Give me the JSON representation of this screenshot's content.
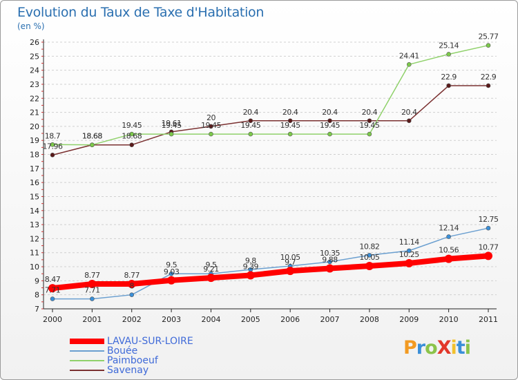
{
  "header": {
    "title": "Evolution du Taux de Taxe d'Habitation",
    "unit": "(en %)"
  },
  "logo": {
    "text": "ProXiti",
    "letter_colors": [
      "#f29a22",
      "#3a8fd8",
      "#8bc34a",
      "#e2372a",
      "#f2c12e",
      "#3a8fd8",
      "#8bc34a"
    ]
  },
  "colors": {
    "grid": "#d0d0d0",
    "axis": "#222222",
    "tick_text": "#222222",
    "label_text": "#333333"
  },
  "chart_data": {
    "type": "line",
    "title": "Evolution du Taux de Taxe d'Habitation",
    "ylabel": "(en %)",
    "xlabel": "",
    "x": [
      "2000",
      "2001",
      "2002",
      "2003",
      "2004",
      "2005",
      "2006",
      "2007",
      "2008",
      "2009",
      "2010",
      "2011"
    ],
    "ylim": [
      7,
      26
    ],
    "yticks": [
      7,
      8,
      9,
      10,
      11,
      12,
      13,
      14,
      15,
      16,
      17,
      18,
      19,
      20,
      21,
      22,
      23,
      24,
      25,
      26
    ],
    "grid": "horizontal",
    "legend_position": "bottom-left",
    "series": [
      {
        "name": "LAVAU-SUR-LOIRE",
        "color": "#ff0000",
        "marker": "#ff0000",
        "width": 8,
        "values": [
          8.47,
          8.77,
          8.77,
          9.03,
          9.21,
          9.39,
          9.7,
          9.88,
          10.05,
          10.25,
          10.56,
          10.77
        ],
        "labels": [
          "8.47",
          "8.77",
          "8.77",
          "9.03",
          "9.21",
          "9.39",
          "9.7",
          "9.88",
          "10.05",
          "10.25",
          "10.56",
          "10.77"
        ]
      },
      {
        "name": "Bouée",
        "color": "#6a9fd0",
        "marker": "#3a8fd8",
        "width": 1.5,
        "values": [
          7.71,
          7.71,
          8,
          9.5,
          9.5,
          9.8,
          10.05,
          10.35,
          10.82,
          11.14,
          12.14,
          12.75
        ],
        "labels": [
          "7.71",
          "7.71",
          "8",
          "9.5",
          "9.5",
          "9.8",
          "10.05",
          "10.35",
          "10.82",
          "11.14",
          "12.14",
          "12.75"
        ]
      },
      {
        "name": "Paimboeuf",
        "color": "#8fd16a",
        "marker": "#7cc94a",
        "width": 1.5,
        "values": [
          18.7,
          18.68,
          19.45,
          19.45,
          19.45,
          19.45,
          19.45,
          19.45,
          19.45,
          24.41,
          25.14,
          25.77
        ],
        "labels": [
          "18.7",
          "18.68",
          "19.45",
          "19.45",
          "19.45",
          "19.45",
          "19.45",
          "19.45",
          "19.45",
          "24.41",
          "25.14",
          "25.77"
        ]
      },
      {
        "name": "Savenay",
        "color": "#7a3030",
        "marker": "#5a1a1a",
        "width": 1.5,
        "values": [
          17.96,
          18.68,
          18.68,
          19.61,
          20,
          20.4,
          20.4,
          20.4,
          20.4,
          20.4,
          22.9,
          22.9
        ],
        "labels": [
          "17.96",
          "18.68",
          "18.68",
          "19.61",
          "20",
          "20.4",
          "20.4",
          "20.4",
          "20.4",
          "20.4",
          "22.9",
          "22.9"
        ]
      }
    ]
  }
}
